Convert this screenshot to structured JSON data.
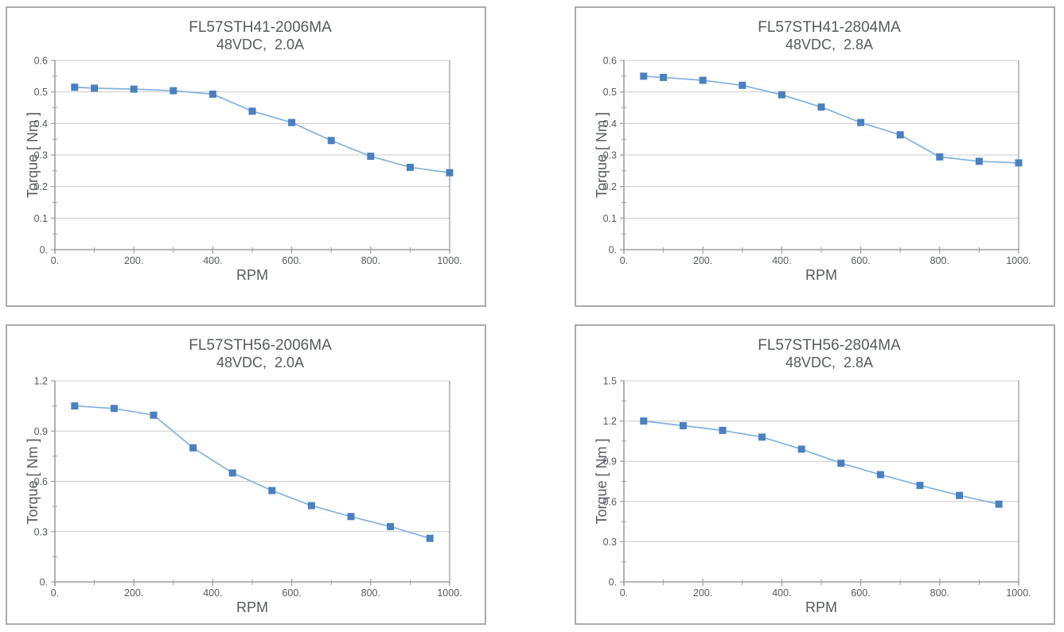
{
  "page_title": "Stepper motor torque-speed curves",
  "colors": {
    "frame_border": "#a9abae",
    "axis": "#9b9ea2",
    "grid": "#c9cbcd",
    "tick": "#9b9ea2",
    "series_line": "#82b1de",
    "series_marker": "#4a80c0",
    "text": "#565a5e"
  },
  "chart_data": [
    {
      "type": "line",
      "title": "FL57STH41-2006MA",
      "subtitle": "48VDC,  2.0A",
      "xlabel": "RPM",
      "ylabel": "Torque [ Nm ]",
      "xlim": [
        0,
        1000
      ],
      "ylim": [
        0,
        0.6
      ],
      "grid": "horizontal",
      "legend": "none",
      "x_major_ticks": [
        0,
        200,
        400,
        600,
        800,
        1000
      ],
      "x_tick_labels": [
        "0.",
        "200.",
        "400.",
        "600.",
        "800.",
        "1000."
      ],
      "x_minor_step": 100,
      "y_major_step": 0.1,
      "y_minor_step": 0.05,
      "y_tick_labels": [
        "0.",
        "0.1",
        "0.2",
        "0.3",
        "0.4",
        "0.5",
        "0.6"
      ],
      "x": [
        50,
        100,
        200,
        300,
        400,
        500,
        600,
        700,
        800,
        900,
        1000
      ],
      "y": [
        0.515,
        0.512,
        0.509,
        0.504,
        0.493,
        0.439,
        0.403,
        0.346,
        0.296,
        0.261,
        0.244
      ]
    },
    {
      "type": "line",
      "title": "FL57STH41-2804MA",
      "subtitle": "48VDC,  2.8A",
      "xlabel": "RPM",
      "ylabel": "Torque [ Nm ]",
      "xlim": [
        0,
        1000
      ],
      "ylim": [
        0,
        0.6
      ],
      "grid": "horizontal",
      "legend": "none",
      "x_major_ticks": [
        0,
        200,
        400,
        600,
        800,
        1000
      ],
      "x_tick_labels": [
        "0.",
        "200.",
        "400.",
        "600.",
        "800.",
        "1000."
      ],
      "x_minor_step": 100,
      "y_major_step": 0.1,
      "y_minor_step": 0.05,
      "y_tick_labels": [
        "0.",
        "0.1",
        "0.2",
        "0.3",
        "0.4",
        "0.5",
        "0.6"
      ],
      "x": [
        50,
        100,
        200,
        300,
        400,
        500,
        600,
        700,
        800,
        900,
        1000
      ],
      "y": [
        0.55,
        0.546,
        0.537,
        0.521,
        0.491,
        0.452,
        0.403,
        0.364,
        0.294,
        0.28,
        0.275
      ]
    },
    {
      "type": "line",
      "title": "FL57STH56-2006MA",
      "subtitle": "48VDC,  2.0A",
      "xlabel": "RPM",
      "ylabel": "Torque [ Nm ]",
      "xlim": [
        0,
        1000
      ],
      "ylim": [
        0,
        1.2
      ],
      "grid": "horizontal",
      "legend": "none",
      "x_major_ticks": [
        0,
        200,
        400,
        600,
        800,
        1000
      ],
      "x_tick_labels": [
        "0.",
        "200.",
        "400.",
        "600.",
        "800.",
        "1000."
      ],
      "x_minor_step": 100,
      "y_major_step": 0.3,
      "y_minor_step": 0.15,
      "y_tick_labels": [
        "0.",
        "0.3",
        "0.6",
        "0.9",
        "1.2"
      ],
      "x": [
        50,
        150,
        250,
        350,
        450,
        550,
        650,
        750,
        850,
        950
      ],
      "y": [
        1.05,
        1.035,
        0.995,
        0.8,
        0.65,
        0.545,
        0.455,
        0.39,
        0.33,
        0.26
      ]
    },
    {
      "type": "line",
      "title": "FL57STH56-2804MA",
      "subtitle": "48VDC,  2.8A",
      "xlabel": "RPM",
      "ylabel": "Torque [ Nm ]",
      "xlim": [
        0,
        1000
      ],
      "ylim": [
        0,
        1.5
      ],
      "grid": "horizontal",
      "legend": "none",
      "x_major_ticks": [
        0,
        200,
        400,
        600,
        800,
        1000
      ],
      "x_tick_labels": [
        "0.",
        "200.",
        "400.",
        "600.",
        "800.",
        "1000."
      ],
      "x_minor_step": 100,
      "y_major_step": 0.3,
      "y_minor_step": 0.15,
      "y_tick_labels": [
        "0.",
        "0.3",
        "0.6",
        "0.9",
        "1.2",
        "1.5"
      ],
      "x": [
        50,
        150,
        250,
        350,
        450,
        550,
        650,
        750,
        850,
        950
      ],
      "y": [
        1.2,
        1.165,
        1.13,
        1.08,
        0.99,
        0.885,
        0.8,
        0.72,
        0.645,
        0.58
      ]
    }
  ]
}
